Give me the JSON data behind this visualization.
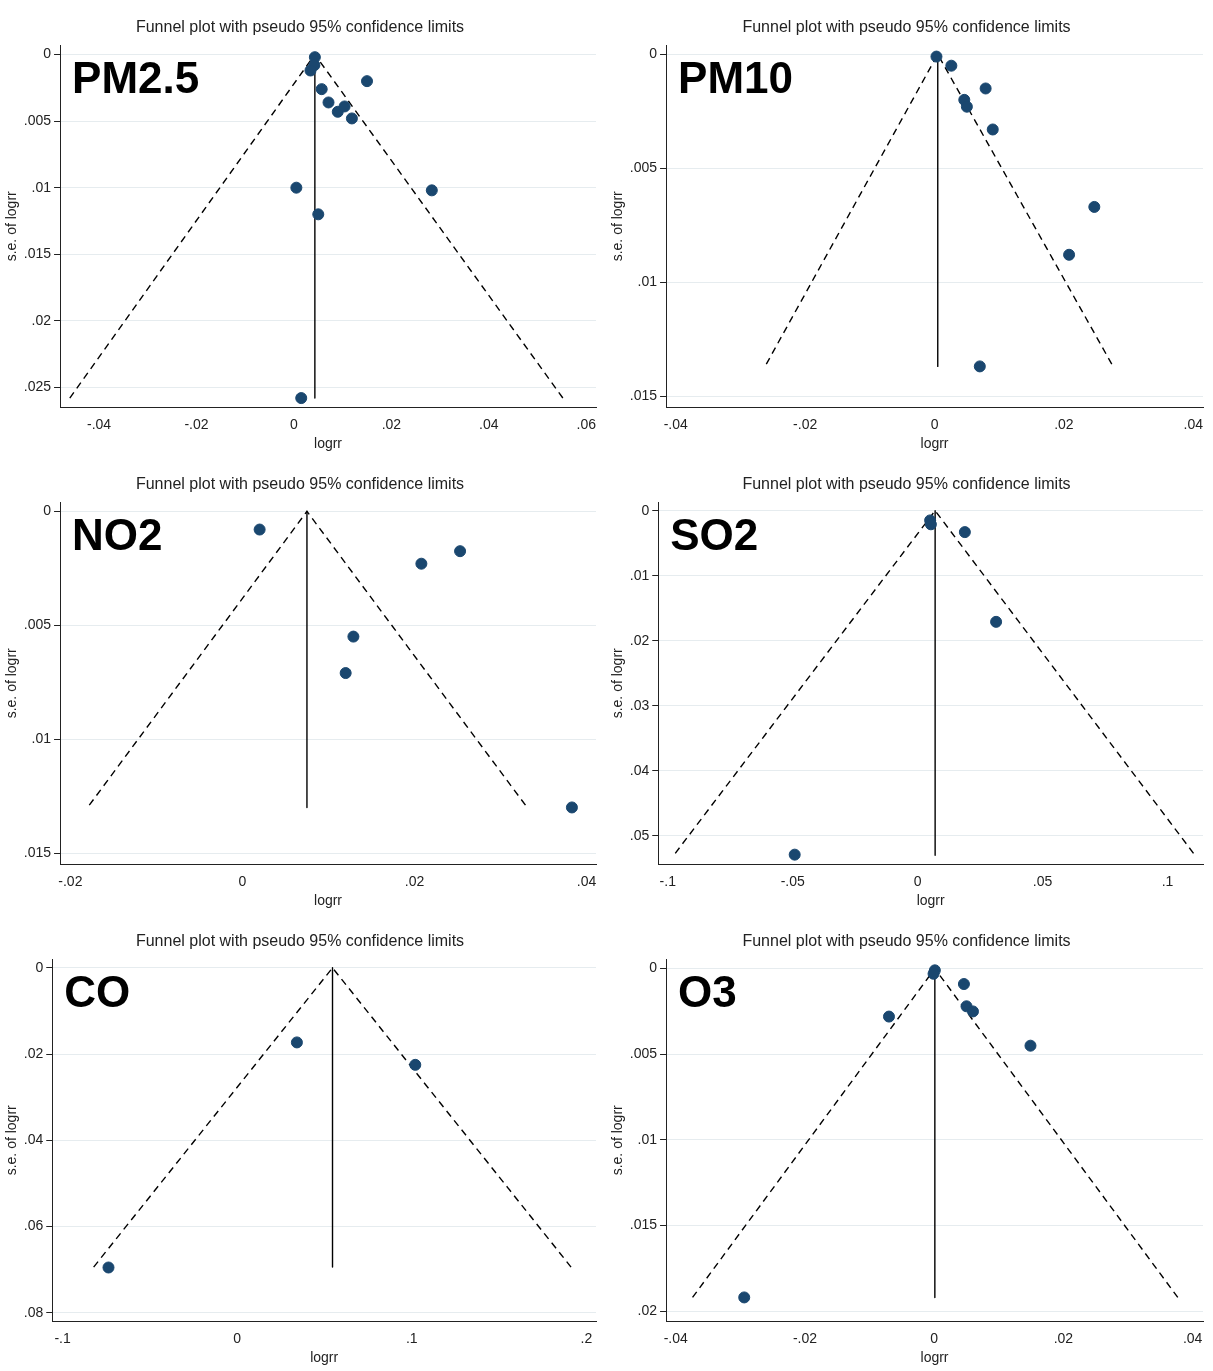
{
  "chart_data": [
    {
      "type": "scatter",
      "title": "Funnel plot with pseudo 95% confidence limits",
      "xlabel": "logrr",
      "ylabel": "s.e. of logrr",
      "annotations": [
        "PM2.5"
      ],
      "grid": "y",
      "xlim": [
        -0.048,
        0.062
      ],
      "ylim": [
        0.0265,
        -0.0007
      ],
      "xticks": [
        {
          "value": -0.04,
          "label": "-.04"
        },
        {
          "value": -0.02,
          "label": "-.02"
        },
        {
          "value": 0,
          "label": "0"
        },
        {
          "value": 0.02,
          "label": ".02"
        },
        {
          "value": 0.04,
          "label": ".04"
        },
        {
          "value": 0.06,
          "label": ".06"
        }
      ],
      "yticks": [
        {
          "value": 0,
          "label": "0"
        },
        {
          "value": 0.005,
          "label": ".005"
        },
        {
          "value": 0.01,
          "label": ".01"
        },
        {
          "value": 0.015,
          "label": ".015"
        },
        {
          "value": 0.02,
          "label": ".02"
        },
        {
          "value": 0.025,
          "label": ".025"
        }
      ],
      "series": [
        {
          "type": "scatter",
          "marker": "circle",
          "color": "#1a476f",
          "x": [
            0.0043,
            0.0042,
            0.0034,
            0.015,
            0.0057,
            0.0071,
            0.009,
            0.0104,
            0.0119,
            0.0005,
            0.0283,
            0.005,
            0.0015
          ],
          "values": [
            0.0002,
            0.0008,
            0.0012,
            0.002,
            0.0026,
            0.0036,
            0.0043,
            0.0039,
            0.0048,
            0.01,
            0.0102,
            0.012,
            0.0258
          ]
        },
        {
          "type": "line",
          "marker": "none",
          "line_style": "dashed",
          "color": "#000000",
          "x": [
            -0.046,
            0.0043,
            0.0552
          ],
          "values": [
            0.0258,
            0,
            0.0258
          ]
        },
        {
          "type": "line",
          "marker": "none",
          "line_style": "solid",
          "color": "#000000",
          "x": [
            0.0043,
            0.0043
          ],
          "values": [
            0,
            0.0258
          ]
        }
      ]
    },
    {
      "type": "scatter",
      "title": "Funnel plot with pseudo 95% confidence limits",
      "xlabel": "logrr",
      "ylabel": "s.e. of logrr",
      "annotations": [
        "PM10"
      ],
      "grid": "y",
      "xlim": [
        -0.0415,
        0.0415
      ],
      "ylim": [
        0.0155,
        -0.0004
      ],
      "xticks": [
        {
          "value": -0.04,
          "label": "-.04"
        },
        {
          "value": -0.02,
          "label": "-.02"
        },
        {
          "value": 0,
          "label": "0"
        },
        {
          "value": 0.02,
          "label": ".02"
        },
        {
          "value": 0.04,
          "label": ".04"
        }
      ],
      "yticks": [
        {
          "value": 0,
          "label": "0"
        },
        {
          "value": 0.005,
          "label": ".005"
        },
        {
          "value": 0.01,
          "label": ".01"
        },
        {
          "value": 0.015,
          "label": ".015"
        }
      ],
      "series": [
        {
          "type": "scatter",
          "marker": "circle",
          "color": "#1a476f",
          "x": [
            0.0003,
            0.0026,
            0.0079,
            0.0046,
            0.005,
            0.009,
            0.0247,
            0.0208,
            0.007
          ],
          "values": [
            0.0001,
            0.0005,
            0.0015,
            0.002,
            0.0023,
            0.0033,
            0.0067,
            0.0088,
            0.0137
          ]
        },
        {
          "type": "line",
          "marker": "none",
          "line_style": "dashed",
          "color": "#000000",
          "x": [
            -0.026,
            0.0005,
            0.0274
          ],
          "values": [
            0.0136,
            0,
            0.0136
          ]
        },
        {
          "type": "line",
          "marker": "none",
          "line_style": "solid",
          "color": "#000000",
          "x": [
            0.0005,
            0.0005
          ],
          "values": [
            0,
            0.0137
          ]
        }
      ]
    },
    {
      "type": "scatter",
      "title": "Funnel plot with pseudo 95% confidence limits",
      "xlabel": "logrr",
      "ylabel": "s.e. of logrr",
      "annotations": [
        "NO2"
      ],
      "grid": "y",
      "xlim": [
        -0.0212,
        0.0411
      ],
      "ylim": [
        0.0155,
        -0.0004
      ],
      "xticks": [
        {
          "value": -0.02,
          "label": "-.02"
        },
        {
          "value": 0,
          "label": "0"
        },
        {
          "value": 0.02,
          "label": ".02"
        },
        {
          "value": 0.04,
          "label": ".04"
        }
      ],
      "yticks": [
        {
          "value": 0,
          "label": "0"
        },
        {
          "value": 0.005,
          "label": ".005"
        },
        {
          "value": 0.01,
          "label": ".01"
        },
        {
          "value": 0.015,
          "label": ".015"
        }
      ],
      "series": [
        {
          "type": "scatter",
          "marker": "circle",
          "color": "#1a476f",
          "x": [
            0.002,
            0.0253,
            0.0208,
            0.0129,
            0.012,
            0.0383
          ],
          "values": [
            0.0008,
            0.00175,
            0.0023,
            0.0055,
            0.0071,
            0.013
          ]
        },
        {
          "type": "line",
          "marker": "none",
          "line_style": "dashed",
          "color": "#000000",
          "x": [
            -0.0178,
            0.0075,
            0.0329
          ],
          "values": [
            0.0129,
            0,
            0.0129
          ]
        },
        {
          "type": "line",
          "marker": "none",
          "line_style": "solid",
          "color": "#000000",
          "x": [
            0.0075,
            0.0075
          ],
          "values": [
            0,
            0.013
          ]
        }
      ]
    },
    {
      "type": "scatter",
      "title": "Funnel plot with pseudo 95% confidence limits",
      "xlabel": "logrr",
      "ylabel": "s.e. of logrr",
      "annotations": [
        "SO2"
      ],
      "grid": "y",
      "xlim": [
        -0.1038,
        0.1142
      ],
      "ylim": [
        0.0544,
        -0.0013
      ],
      "xticks": [
        {
          "value": -0.1,
          "label": "-.1"
        },
        {
          "value": -0.05,
          "label": "-.05"
        },
        {
          "value": 0,
          "label": "0"
        },
        {
          "value": 0.05,
          "label": ".05"
        },
        {
          "value": 0.1,
          "label": ".1"
        }
      ],
      "yticks": [
        {
          "value": 0,
          "label": "0"
        },
        {
          "value": 0.01,
          "label": ".01"
        },
        {
          "value": 0.02,
          "label": ".02"
        },
        {
          "value": 0.03,
          "label": ".03"
        },
        {
          "value": 0.04,
          "label": ".04"
        },
        {
          "value": 0.05,
          "label": ".05"
        }
      ],
      "series": [
        {
          "type": "scatter",
          "marker": "circle",
          "color": "#1a476f",
          "x": [
            0.005,
            0.0053,
            0.0189,
            0.0314,
            -0.0492
          ],
          "values": [
            0.0015,
            0.0021,
            0.0033,
            0.0171,
            0.0529
          ]
        },
        {
          "type": "line",
          "marker": "none",
          "line_style": "dashed",
          "color": "#000000",
          "x": [
            -0.097,
            0.007,
            0.1104
          ],
          "values": [
            0.0527,
            0,
            0.0527
          ]
        },
        {
          "type": "line",
          "marker": "none",
          "line_style": "solid",
          "color": "#000000",
          "x": [
            0.007,
            0.007
          ],
          "values": [
            0,
            0.053
          ]
        }
      ]
    },
    {
      "type": "scatter",
      "title": "Funnel plot with pseudo 95% confidence limits",
      "xlabel": "logrr",
      "ylabel": "s.e. of logrr",
      "annotations": [
        "CO"
      ],
      "grid": "y",
      "xlim": [
        -0.1059,
        0.2055
      ],
      "ylim": [
        0.082,
        -0.002
      ],
      "xticks": [
        {
          "value": -0.1,
          "label": "-.1"
        },
        {
          "value": 0,
          "label": "0"
        },
        {
          "value": 0.1,
          "label": ".1"
        },
        {
          "value": 0.2,
          "label": ".2"
        }
      ],
      "yticks": [
        {
          "value": 0,
          "label": "0"
        },
        {
          "value": 0.02,
          "label": ".02"
        },
        {
          "value": 0.04,
          "label": ".04"
        },
        {
          "value": 0.06,
          "label": ".06"
        },
        {
          "value": 0.08,
          "label": ".08"
        }
      ],
      "series": [
        {
          "type": "scatter",
          "marker": "circle",
          "color": "#1a476f",
          "x": [
            0.0342,
            0.102,
            -0.0737
          ],
          "values": [
            0.0173,
            0.0225,
            0.0695
          ]
        },
        {
          "type": "line",
          "marker": "none",
          "line_style": "dashed",
          "color": "#000000",
          "x": [
            -0.0822,
            0.0546,
            0.1912
          ],
          "values": [
            0.0694,
            0,
            0.0694
          ]
        },
        {
          "type": "line",
          "marker": "none",
          "line_style": "solid",
          "color": "#000000",
          "x": [
            0.0546,
            0.0546
          ],
          "values": [
            0,
            0.0694
          ]
        }
      ]
    },
    {
      "type": "scatter",
      "title": "Funnel plot with pseudo 95% confidence limits",
      "xlabel": "logrr",
      "ylabel": "s.e. of logrr",
      "annotations": [
        "O3"
      ],
      "grid": "y",
      "xlim": [
        -0.0415,
        0.0416
      ],
      "ylim": [
        0.0206,
        -0.00055
      ],
      "xticks": [
        {
          "value": -0.04,
          "label": "-.04"
        },
        {
          "value": -0.02,
          "label": "-.02"
        },
        {
          "value": 0,
          "label": "0"
        },
        {
          "value": 0.02,
          "label": ".02"
        },
        {
          "value": 0.04,
          "label": ".04"
        }
      ],
      "yticks": [
        {
          "value": 0,
          "label": "0"
        },
        {
          "value": 0.005,
          "label": ".005"
        },
        {
          "value": 0.01,
          "label": ".01"
        },
        {
          "value": 0.015,
          "label": ".015"
        },
        {
          "value": 0.02,
          "label": ".02"
        }
      ],
      "series": [
        {
          "type": "scatter",
          "marker": "circle",
          "color": "#1a476f",
          "x": [
            0.0001,
            -0.0001,
            0.0046,
            0.005,
            0.006,
            -0.007,
            0.0149,
            -0.0294
          ],
          "values": [
            0.0001,
            0.0003,
            0.0009,
            0.0022,
            0.0025,
            0.0028,
            0.0045,
            0.0192
          ]
        },
        {
          "type": "line",
          "marker": "none",
          "line_style": "dashed",
          "color": "#000000",
          "x": [
            -0.0374,
            0.0001,
            0.0377
          ],
          "values": [
            0.0192,
            0,
            0.0192
          ]
        },
        {
          "type": "line",
          "marker": "none",
          "line_style": "solid",
          "color": "#000000",
          "x": [
            0.0001,
            0.0001
          ],
          "values": [
            0,
            0.0192
          ]
        }
      ]
    }
  ]
}
